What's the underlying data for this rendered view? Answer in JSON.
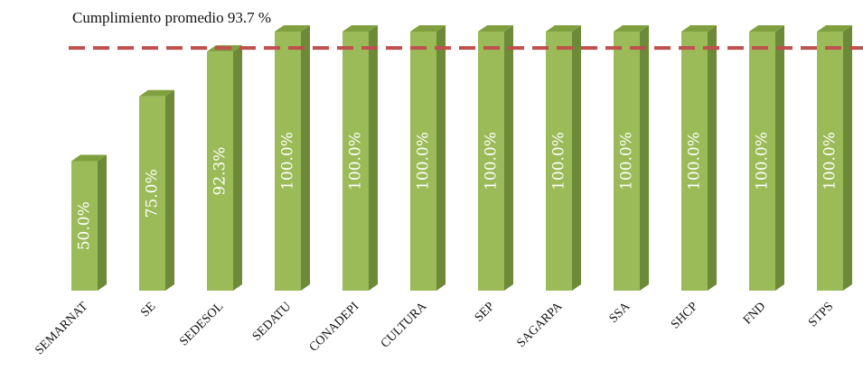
{
  "chart_data": {
    "type": "bar",
    "title": "",
    "xlabel": "",
    "ylabel": "",
    "ylim": [
      0,
      100
    ],
    "categories": [
      "SEMARNAT",
      "SE",
      "SEDESOL",
      "SEDATU",
      "CONADEPI",
      "CULTURA",
      "SEP",
      "SAGARPA",
      "SSA",
      "SHCP",
      "FND",
      "STPS"
    ],
    "values": [
      50.0,
      75.0,
      92.3,
      100.0,
      100.0,
      100.0,
      100.0,
      100.0,
      100.0,
      100.0,
      100.0,
      100.0
    ],
    "value_labels": [
      "50.0%",
      "75.0%",
      "92.3%",
      "100.0%",
      "100.0%",
      "100.0%",
      "100.0%",
      "100.0%",
      "100.0%",
      "100.0%",
      "100.0%",
      "100.0%"
    ],
    "average": {
      "value": 93.7,
      "label": "Cumplimiento promedio 93.7 %"
    },
    "grid": false,
    "colors": {
      "bar_front": "#9bbb59",
      "bar_side": "#6c8a37",
      "bar_top": "#80a040",
      "average_line": "#c0504d"
    }
  }
}
